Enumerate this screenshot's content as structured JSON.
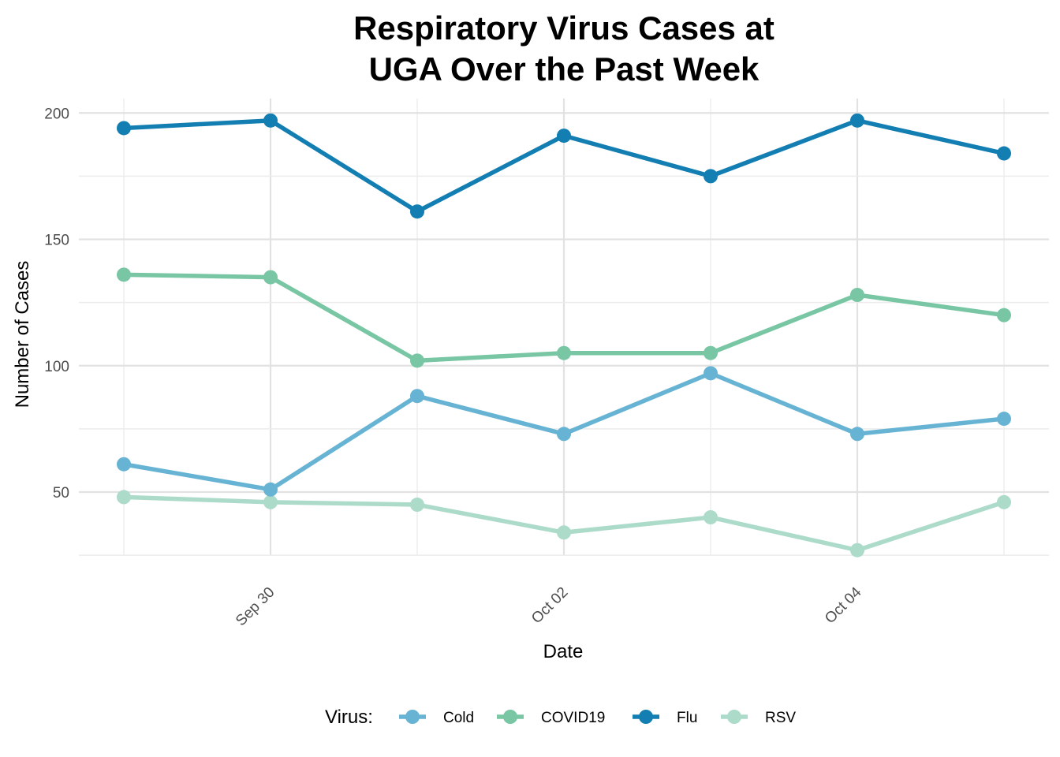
{
  "chart_data": {
    "type": "line",
    "title_line1": "Respiratory Virus Cases at",
    "title_line2": "UGA Over the Past Week",
    "xlabel": "Date",
    "ylabel": "Number of Cases",
    "x": [
      "2024-09-29",
      "2024-09-30",
      "2024-10-01",
      "2024-10-02",
      "2024-10-03",
      "2024-10-04",
      "2024-10-05"
    ],
    "x_tick_labels": [
      {
        "label": "Sep 30",
        "index": 1
      },
      {
        "label": "Oct 02",
        "index": 3
      },
      {
        "label": "Oct 04",
        "index": 5
      }
    ],
    "y_ticks": [
      50,
      100,
      150,
      200
    ],
    "ylim": [
      20,
      205
    ],
    "grid": true,
    "legend": {
      "title": "Virus:",
      "placement": "bottom"
    },
    "series": [
      {
        "name": "Cold",
        "color": "#67b3d3",
        "values": [
          61,
          51,
          88,
          73,
          97,
          73,
          79
        ]
      },
      {
        "name": "COVID19",
        "color": "#78c6a3",
        "values": [
          136,
          135,
          102,
          105,
          105,
          128,
          120
        ]
      },
      {
        "name": "Flu",
        "color": "#137eb1",
        "values": [
          194,
          197,
          161,
          191,
          175,
          197,
          184
        ]
      },
      {
        "name": "RSV",
        "color": "#acdbc9",
        "values": [
          48,
          46,
          45,
          34,
          40,
          27,
          46
        ]
      }
    ]
  }
}
